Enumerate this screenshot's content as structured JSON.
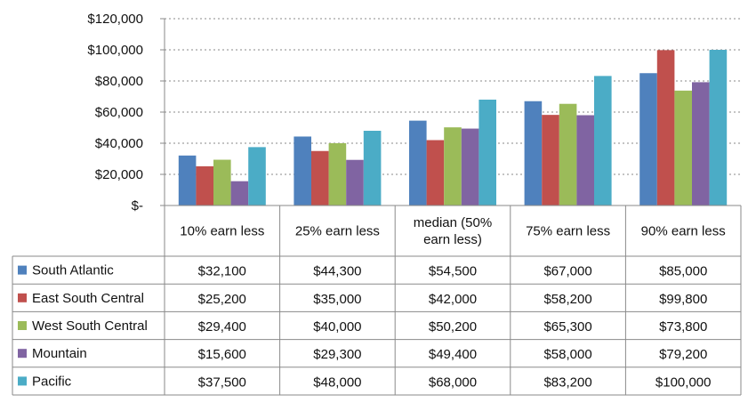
{
  "chart_data": {
    "type": "bar",
    "title": "",
    "xlabel": "",
    "ylabel": "",
    "ylim": [
      0,
      120000
    ],
    "y_ticks": [
      0,
      20000,
      40000,
      60000,
      80000,
      100000,
      120000
    ],
    "y_tick_labels": [
      "$-",
      "$20,000",
      "$40,000",
      "$60,000",
      "$80,000",
      "$100,000",
      "$120,000"
    ],
    "grid": "horizontal dotted",
    "legend": "embedded in data table",
    "categories": [
      "10% earn less",
      "25% earn less",
      "median (50% earn less)",
      "75% earn less",
      "90% earn less"
    ],
    "category_lines": [
      [
        "10% earn less"
      ],
      [
        "25% earn less"
      ],
      [
        "median (50%",
        "earn less)"
      ],
      [
        "75% earn less"
      ],
      [
        "90% earn less"
      ]
    ],
    "series": [
      {
        "name": "South Atlantic",
        "color": "#4f81bd",
        "values": [
          32100,
          44300,
          54500,
          67000,
          85000
        ],
        "labels": [
          "$32,100",
          "$44,300",
          "$54,500",
          "$67,000",
          "$85,000"
        ]
      },
      {
        "name": "East South Central",
        "color": "#c0504d",
        "values": [
          25200,
          35000,
          42000,
          58200,
          99800
        ],
        "labels": [
          "$25,200",
          "$35,000",
          "$42,000",
          "$58,200",
          "$99,800"
        ]
      },
      {
        "name": "West South Central",
        "color": "#9bbb59",
        "values": [
          29400,
          40000,
          50200,
          65300,
          73800
        ],
        "labels": [
          "$29,400",
          "$40,000",
          "$50,200",
          "$65,300",
          "$73,800"
        ]
      },
      {
        "name": "Mountain",
        "color": "#8064a2",
        "values": [
          15600,
          29300,
          49400,
          58000,
          79200
        ],
        "labels": [
          "$15,600",
          "$29,300",
          "$49,400",
          "$58,000",
          "$79,200"
        ]
      },
      {
        "name": "Pacific",
        "color": "#4bacc6",
        "values": [
          37500,
          48000,
          68000,
          83200,
          100000
        ],
        "labels": [
          "$37,500",
          "$48,000",
          "$68,000",
          "$83,200",
          "$100,000"
        ]
      }
    ]
  }
}
